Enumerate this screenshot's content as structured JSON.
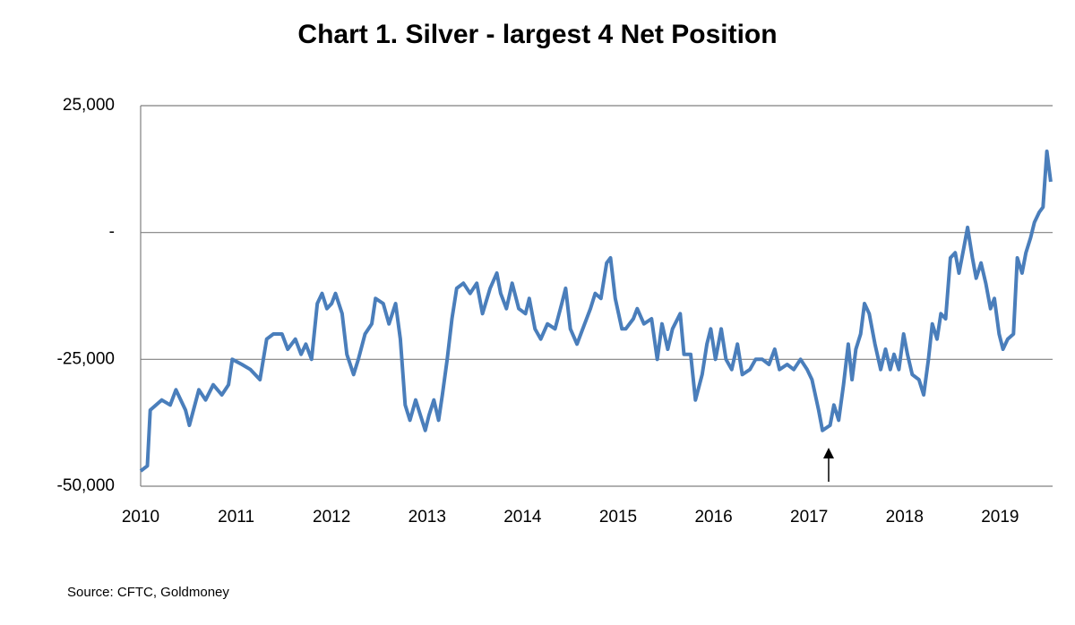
{
  "chart_data": {
    "type": "line",
    "title": "Chart 1. Silver - largest 4 Net Position",
    "source": "Source: CFTC, Goldmoney",
    "x": [
      2010.0,
      2010.07,
      2010.1,
      2010.22,
      2010.31,
      2010.37,
      2010.47,
      2010.51,
      2010.61,
      2010.68,
      2010.76,
      2010.85,
      2010.92,
      2010.96,
      2011.06,
      2011.15,
      2011.25,
      2011.32,
      2011.39,
      2011.48,
      2011.54,
      2011.62,
      2011.68,
      2011.73,
      2011.79,
      2011.85,
      2011.9,
      2011.95,
      2012.0,
      2012.04,
      2012.11,
      2012.16,
      2012.23,
      2012.28,
      2012.35,
      2012.42,
      2012.46,
      2012.54,
      2012.6,
      2012.67,
      2012.72,
      2012.77,
      2012.82,
      2012.88,
      2012.93,
      2012.98,
      2013.02,
      2013.07,
      2013.12,
      2013.16,
      2013.21,
      2013.26,
      2013.31,
      2013.38,
      2013.45,
      2013.52,
      2013.58,
      2013.66,
      2013.73,
      2013.77,
      2013.83,
      2013.89,
      2013.96,
      2014.03,
      2014.07,
      2014.13,
      2014.19,
      2014.26,
      2014.34,
      2014.41,
      2014.45,
      2014.5,
      2014.57,
      2014.63,
      2014.71,
      2014.76,
      2014.82,
      2014.88,
      2014.92,
      2014.97,
      2015.04,
      2015.08,
      2015.16,
      2015.2,
      2015.27,
      2015.35,
      2015.41,
      2015.46,
      2015.52,
      2015.57,
      2015.65,
      2015.69,
      2015.76,
      2015.81,
      2015.88,
      2015.93,
      2015.97,
      2016.02,
      2016.08,
      2016.13,
      2016.19,
      2016.25,
      2016.3,
      2016.38,
      2016.44,
      2016.51,
      2016.58,
      2016.64,
      2016.69,
      2016.77,
      2016.84,
      2016.91,
      2016.98,
      2017.03,
      2017.1,
      2017.14,
      2017.22,
      2017.26,
      2017.31,
      2017.36,
      2017.41,
      2017.45,
      2017.49,
      2017.54,
      2017.58,
      2017.63,
      2017.69,
      2017.75,
      2017.8,
      2017.85,
      2017.89,
      2017.94,
      2017.99,
      2018.03,
      2018.08,
      2018.15,
      2018.2,
      2018.25,
      2018.29,
      2018.34,
      2018.38,
      2018.43,
      2018.48,
      2018.53,
      2018.57,
      2018.62,
      2018.66,
      2018.71,
      2018.75,
      2018.8,
      2018.85,
      2018.9,
      2018.94,
      2018.99,
      2019.03,
      2019.08,
      2019.14,
      2019.18,
      2019.23,
      2019.27,
      2019.32,
      2019.36,
      2019.41,
      2019.45,
      2019.49,
      2019.53
    ],
    "series": [
      {
        "name": "largest 4 Net Position",
        "color": "#4a7ebb",
        "values": [
          -47000,
          -46000,
          -35000,
          -33000,
          -34000,
          -31000,
          -35000,
          -38000,
          -31000,
          -33000,
          -30000,
          -32000,
          -30000,
          -25000,
          -26000,
          -27000,
          -29000,
          -21000,
          -20000,
          -20000,
          -23000,
          -21000,
          -24000,
          -22000,
          -25000,
          -14000,
          -12000,
          -15000,
          -14000,
          -12000,
          -16000,
          -24000,
          -28000,
          -25000,
          -20000,
          -18000,
          -13000,
          -14000,
          -18000,
          -14000,
          -21000,
          -34000,
          -37000,
          -33000,
          -36000,
          -39000,
          -36000,
          -33000,
          -37000,
          -32000,
          -25000,
          -17000,
          -11000,
          -10000,
          -12000,
          -10000,
          -16000,
          -11000,
          -8000,
          -12000,
          -15000,
          -10000,
          -15000,
          -16000,
          -13000,
          -19000,
          -21000,
          -18000,
          -19000,
          -14000,
          -11000,
          -19000,
          -22000,
          -19000,
          -15000,
          -12000,
          -13000,
          -6000,
          -5000,
          -13000,
          -19000,
          -19000,
          -17000,
          -15000,
          -18000,
          -17000,
          -25000,
          -18000,
          -23000,
          -19000,
          -16000,
          -24000,
          -24000,
          -33000,
          -28000,
          -22000,
          -19000,
          -25000,
          -19000,
          -25000,
          -27000,
          -22000,
          -28000,
          -27000,
          -25000,
          -25000,
          -26000,
          -23000,
          -27000,
          -26000,
          -27000,
          -25000,
          -27000,
          -29000,
          -35000,
          -39000,
          -38000,
          -34000,
          -37000,
          -30000,
          -22000,
          -29000,
          -23000,
          -20000,
          -14000,
          -16000,
          -22000,
          -27000,
          -23000,
          -27000,
          -24000,
          -27000,
          -20000,
          -24000,
          -28000,
          -29000,
          -32000,
          -25000,
          -18000,
          -21000,
          -16000,
          -17000,
          -5000,
          -4000,
          -8000,
          -3000,
          1000,
          -5000,
          -9000,
          -6000,
          -10000,
          -15000,
          -13000,
          -20000,
          -23000,
          -21000,
          -20000,
          -5000,
          -8000,
          -4000,
          -1000,
          2000,
          4000,
          5000,
          16000,
          10000
        ]
      }
    ],
    "xlim": [
      2010,
      2019.55
    ],
    "xticks": [
      2010,
      2011,
      2012,
      2013,
      2014,
      2015,
      2016,
      2017,
      2018,
      2019
    ],
    "ylim": [
      -50000,
      25000
    ],
    "yticks": [
      {
        "value": -50000,
        "label": "-50,000"
      },
      {
        "value": -25000,
        "label": "-25,000"
      },
      {
        "value": 0,
        "label": "-"
      },
      {
        "value": 25000,
        "label": "25,000"
      }
    ],
    "grid": true
  }
}
